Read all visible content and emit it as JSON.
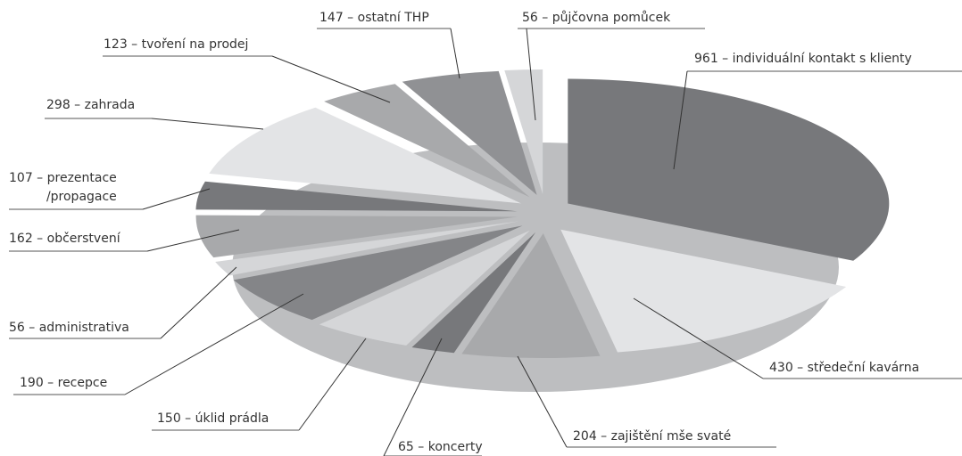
{
  "chart_data": {
    "type": "pie",
    "values": [
      961,
      430,
      204,
      65,
      150,
      190,
      56,
      162,
      107,
      298,
      123,
      147,
      56
    ],
    "value_labels": [
      "961 – individuální kontakt s klienty",
      "430 – středeční kavárna",
      "204 – zajištění mše svaté",
      "65 – koncerty",
      "150 – úklid prádla",
      "190 – recepce",
      "56 – administrativa",
      "162 – občerstvení",
      "107 – prezentace\n/propagace",
      "298 – zahrada",
      "123 – tvoření na prodej",
      "147 – ostatní THP",
      "56 – půjčovna pomůcek"
    ],
    "colors": [
      "#77787b",
      "#e3e4e6",
      "#a8a9ab",
      "#77787b",
      "#d5d6d8",
      "#848588",
      "#d5d6d8",
      "#a8a9ab",
      "#77787b",
      "#e3e4e6",
      "#a8a9ab",
      "#909194",
      "#d5d6d8"
    ]
  }
}
